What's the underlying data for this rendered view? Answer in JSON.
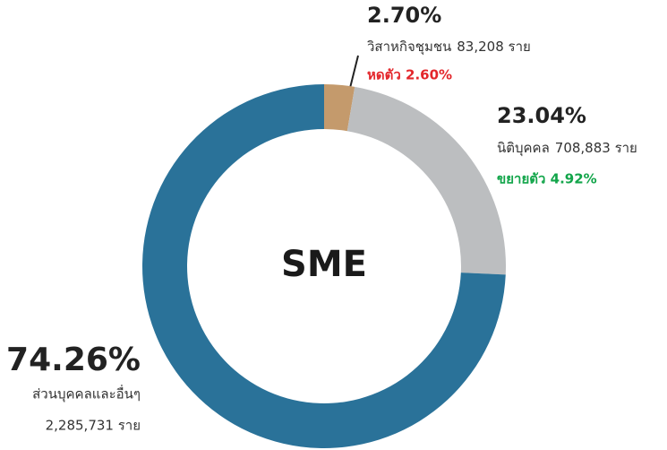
{
  "chart_data": {
    "type": "pie",
    "donut": true,
    "title": "SME",
    "categories": [
      "วิสาหกิจชุมชน",
      "นิติบุคคล",
      "ส่วนบุคคลและอื่นๆ"
    ],
    "values": [
      2.7,
      23.04,
      74.26
    ],
    "value_labels": [
      "2.70%",
      "23.04%",
      "74.26%"
    ],
    "colors": [
      "#c49a6c",
      "#bcbec0",
      "#2a7299"
    ],
    "counts": [
      "83,208 ราย",
      "708,883 ราย",
      "2,285,731 ราย"
    ],
    "changes": [
      {
        "label": "หดตัว 2.60%",
        "color": "#e3262b"
      },
      {
        "label": "ขยายตัว 4.92%",
        "color": "#12a54a"
      },
      null
    ]
  }
}
